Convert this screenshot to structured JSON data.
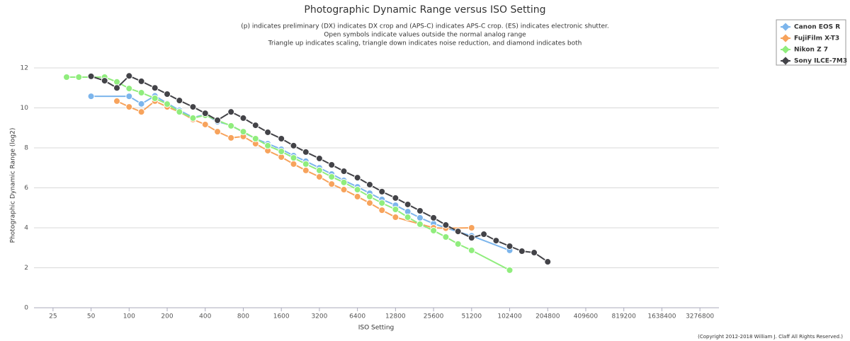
{
  "chart_data": {
    "type": "line",
    "title": "Photographic Dynamic Range versus ISO Setting",
    "subtitle": [
      "(p) indicates preliminary (DX) indicates DX crop and (APS-C) indicates APS-C crop. (ES) indicates electronic shutter.",
      "Open symbols indicate values outside the normal analog range",
      "Triangle up indicates scaling, triangle down indicates noise reduction, and diamond indicates both"
    ],
    "x_label": "ISO Setting",
    "y_label": "Photographic Dynamic Range (log2)",
    "credit": "(Copyright 2012-2018 William J. Claff All Rights Reserved.)",
    "xscale": "log",
    "xlim": [
      17.68,
      4634000
    ],
    "xticks": [
      25,
      50,
      100,
      200,
      400,
      800,
      1600,
      3200,
      6400,
      12800,
      25600,
      51200,
      102400,
      204800,
      409600,
      819200,
      1638400,
      3276800
    ],
    "ylim": [
      0,
      12
    ],
    "yticks": [
      0,
      2,
      4,
      6,
      8,
      10,
      12
    ],
    "grid": true,
    "legend": "top-right",
    "series": [
      {
        "name": "Canon EOS R",
        "color": "#7cb5ec",
        "x": [
          50,
          100,
          125,
          160,
          200,
          250,
          320,
          400,
          500,
          640,
          800,
          1000,
          1250,
          1600,
          2000,
          2500,
          3200,
          4000,
          5000,
          6400,
          8000,
          10000,
          12800,
          16000,
          20000,
          25600,
          32000,
          40000,
          51200,
          102400
        ],
        "values": [
          10.58,
          10.58,
          10.2,
          10.6,
          10.23,
          9.88,
          9.52,
          9.66,
          9.31,
          9.13,
          8.78,
          8.46,
          8.21,
          7.93,
          7.61,
          7.33,
          7.0,
          6.69,
          6.37,
          6.05,
          5.73,
          5.42,
          5.13,
          4.81,
          4.5,
          4.21,
          4.0,
          3.8,
          3.6,
          2.87
        ]
      },
      {
        "name": "FujiFilm X-T3",
        "color": "#f7a35c",
        "x": [
          80,
          100,
          125,
          160,
          200,
          250,
          320,
          400,
          500,
          640,
          800,
          1000,
          1250,
          1600,
          2000,
          2500,
          3200,
          4000,
          5000,
          6400,
          8000,
          10000,
          12800,
          25600,
          32000,
          51200
        ],
        "values": [
          10.34,
          10.05,
          9.8,
          10.34,
          10.05,
          9.8,
          9.42,
          9.17,
          8.81,
          8.5,
          8.57,
          8.21,
          7.86,
          7.54,
          7.19,
          6.87,
          6.55,
          6.19,
          5.91,
          5.56,
          5.24,
          4.88,
          4.53,
          4.0,
          3.98,
          4.0
        ]
      },
      {
        "name": "Nikon Z 7",
        "color": "#90ed7d",
        "x": [
          32,
          40,
          64,
          80,
          100,
          125,
          160,
          200,
          250,
          320,
          400,
          500,
          640,
          800,
          1000,
          1250,
          1600,
          2000,
          2500,
          3200,
          4000,
          5000,
          6400,
          8000,
          10000,
          12800,
          16000,
          20000,
          25600,
          32000,
          40000,
          51200,
          102400
        ],
        "values": [
          11.54,
          11.54,
          11.54,
          11.3,
          10.97,
          10.76,
          10.48,
          10.19,
          9.8,
          9.49,
          9.63,
          9.38,
          9.1,
          8.81,
          8.46,
          8.11,
          7.82,
          7.5,
          7.19,
          6.87,
          6.55,
          6.27,
          5.91,
          5.56,
          5.24,
          4.92,
          4.53,
          4.18,
          3.86,
          3.54,
          3.19,
          2.87,
          1.88
        ]
      },
      {
        "name": "Sony ILCE-7M3",
        "color": "#434348",
        "x": [
          50,
          64,
          80,
          100,
          125,
          160,
          200,
          250,
          320,
          400,
          500,
          640,
          800,
          1000,
          1250,
          1600,
          2000,
          2500,
          3200,
          4000,
          5000,
          6400,
          8000,
          10000,
          12800,
          16000,
          20000,
          25600,
          32000,
          40000,
          51200,
          64000,
          80000,
          102400,
          128000,
          160000,
          204800
        ],
        "values": [
          11.58,
          11.36,
          11.0,
          11.6,
          11.33,
          11.0,
          10.69,
          10.37,
          10.05,
          9.73,
          9.38,
          9.8,
          9.49,
          9.13,
          8.78,
          8.46,
          8.11,
          7.79,
          7.47,
          7.15,
          6.83,
          6.51,
          6.16,
          5.81,
          5.49,
          5.17,
          4.85,
          4.5,
          4.14,
          3.82,
          3.5,
          3.68,
          3.36,
          3.08,
          2.83,
          2.76,
          2.3
        ]
      }
    ]
  }
}
